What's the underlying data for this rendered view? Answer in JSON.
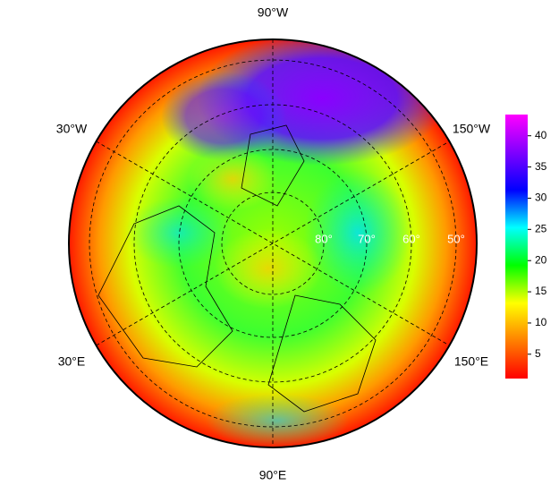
{
  "map": {
    "meridian_labels": [
      "90°W",
      "30°W",
      "150°W",
      "30°E",
      "150°E",
      "90°E"
    ],
    "parallel_labels": [
      "80°",
      "70°",
      "60°",
      "50°"
    ],
    "colorbar": {
      "range": [
        1.1,
        43.4
      ],
      "ticks": [
        5,
        10,
        15,
        20,
        25,
        30,
        35,
        40
      ],
      "colors": [
        "#ff0000",
        "#ff8000",
        "#ffff00",
        "#00ff00",
        "#00ffff",
        "#0000ff",
        "#8000ff",
        "#ff00ff"
      ]
    }
  }
}
